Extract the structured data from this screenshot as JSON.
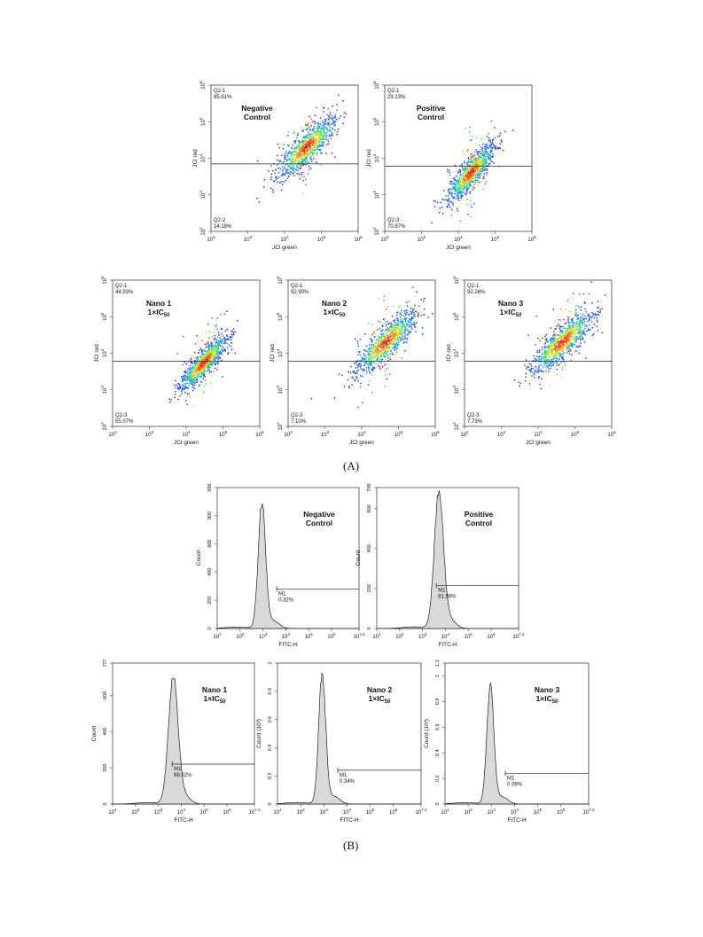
{
  "panel_labels": {
    "a": "(A)",
    "b": "(B)"
  },
  "chart_data": [
    {
      "type": "scatter",
      "panel": "A",
      "title_lines": [
        "Negative",
        "Control"
      ],
      "xlabel": "JCl green",
      "ylabel": "JCl red",
      "xscale": "log",
      "yscale": "log",
      "xlim": [
        100,
        1000000
      ],
      "ylim": [
        100,
        1000000
      ],
      "x_ticks": [
        {
          "exp": "2"
        },
        {
          "exp": "3"
        },
        {
          "exp": "4"
        },
        {
          "exp": "5"
        },
        {
          "exp": "6"
        }
      ],
      "y_ticks": [
        {
          "exp": "2"
        },
        {
          "exp": "3"
        },
        {
          "exp": "4"
        },
        {
          "exp": "5"
        },
        {
          "exp": "6"
        }
      ],
      "gate_y": 7000,
      "quadrants": [
        {
          "name": "Q2-1",
          "value": "85.81%",
          "position": "top-left"
        },
        {
          "name": "Q2-2",
          "value": "14.18%",
          "position": "bottom-left"
        }
      ],
      "population": {
        "center": [
          40000,
          20000
        ],
        "spread_x": 0.4,
        "spread_y": 0.5,
        "slope": 0.85,
        "count": 950
      }
    },
    {
      "type": "scatter",
      "panel": "A",
      "title_lines": [
        "Positive",
        "Control"
      ],
      "xlabel": "JCl green",
      "ylabel": "JCl red",
      "xscale": "log",
      "yscale": "log",
      "xlim": [
        100,
        1000000
      ],
      "ylim": [
        100,
        1000000
      ],
      "x_ticks": [
        {
          "exp": "2"
        },
        {
          "exp": "3"
        },
        {
          "exp": "4"
        },
        {
          "exp": "5"
        },
        {
          "exp": "6"
        }
      ],
      "y_ticks": [
        {
          "exp": "2"
        },
        {
          "exp": "3"
        },
        {
          "exp": "4"
        },
        {
          "exp": "5"
        },
        {
          "exp": "6"
        }
      ],
      "gate_y": 6000,
      "quadrants": [
        {
          "name": "Q2-1",
          "value": "29.13%",
          "position": "top-left"
        },
        {
          "name": "Q2-3",
          "value": "70.87%",
          "position": "bottom-left"
        }
      ],
      "population": {
        "center": [
          22000,
          4000
        ],
        "spread_x": 0.32,
        "spread_y": 0.45,
        "slope": 1.0,
        "count": 950
      }
    },
    {
      "type": "scatter",
      "panel": "A",
      "title_lines": [
        "Nano 1",
        "1×IC"
      ],
      "title_sub": "50",
      "xlabel": "JCl green",
      "ylabel": "JCl red",
      "xscale": "log",
      "yscale": "log",
      "xlim": [
        100,
        1000000
      ],
      "ylim": [
        100,
        1000000
      ],
      "x_ticks": [
        {
          "exp": "2"
        },
        {
          "exp": "3"
        },
        {
          "exp": "4"
        },
        {
          "exp": "5"
        },
        {
          "exp": "6"
        }
      ],
      "y_ticks": [
        {
          "exp": "2"
        },
        {
          "exp": "3"
        },
        {
          "exp": "4"
        },
        {
          "exp": "5"
        },
        {
          "exp": "6"
        }
      ],
      "gate_y": 6000,
      "quadrants": [
        {
          "name": "Q2-1",
          "value": "44.93%",
          "position": "top-left"
        },
        {
          "name": "Q2-3",
          "value": "55.07%",
          "position": "bottom-left"
        }
      ],
      "population": {
        "center": [
          30000,
          5500
        ],
        "spread_x": 0.33,
        "spread_y": 0.4,
        "slope": 1.0,
        "count": 950
      }
    },
    {
      "type": "scatter",
      "panel": "A",
      "title_lines": [
        "Nano 2",
        "1×IC"
      ],
      "title_sub": "50",
      "xlabel": "JCl green",
      "ylabel": "JCl red",
      "xscale": "log",
      "yscale": "log",
      "xlim": [
        100,
        1000000
      ],
      "ylim": [
        100,
        1000000
      ],
      "x_ticks": [
        {
          "exp": "2"
        },
        {
          "exp": "3"
        },
        {
          "exp": "4"
        },
        {
          "exp": "5"
        },
        {
          "exp": "6"
        }
      ],
      "y_ticks": [
        {
          "exp": "2"
        },
        {
          "exp": "3"
        },
        {
          "exp": "4"
        },
        {
          "exp": "5"
        },
        {
          "exp": "6"
        }
      ],
      "gate_y": 6000,
      "quadrants": [
        {
          "name": "Q2-1",
          "value": "92.90%",
          "position": "top-left"
        },
        {
          "name": "Q2-3",
          "value": "7.10%",
          "position": "bottom-left"
        }
      ],
      "population": {
        "center": [
          45000,
          20000
        ],
        "spread_x": 0.42,
        "spread_y": 0.5,
        "slope": 0.85,
        "count": 950
      }
    },
    {
      "type": "scatter",
      "panel": "A",
      "title_lines": [
        "Nano 3",
        "1×IC"
      ],
      "title_sub": "50",
      "xlabel": "JCl green",
      "ylabel": "JCl red",
      "xscale": "log",
      "yscale": "log",
      "xlim": [
        100,
        1000000
      ],
      "ylim": [
        100,
        1000000
      ],
      "x_ticks": [
        {
          "exp": "2"
        },
        {
          "exp": "3"
        },
        {
          "exp": "4"
        },
        {
          "exp": "5"
        },
        {
          "exp": "6"
        }
      ],
      "y_ticks": [
        {
          "exp": "2"
        },
        {
          "exp": "3"
        },
        {
          "exp": "4"
        },
        {
          "exp": "5"
        },
        {
          "exp": "6"
        }
      ],
      "gate_y": 6000,
      "quadrants": [
        {
          "name": "Q2-1",
          "value": "92.26%",
          "position": "top-left"
        },
        {
          "name": "Q2-3",
          "value": "7.73%",
          "position": "bottom-left"
        }
      ],
      "population": {
        "center": [
          45000,
          20000
        ],
        "spread_x": 0.42,
        "spread_y": 0.5,
        "slope": 0.85,
        "count": 950
      }
    },
    {
      "type": "area",
      "panel": "B",
      "title_lines": [
        "Negative",
        "Control"
      ],
      "xlabel": "FITC-H",
      "ylabel": "Count",
      "xscale": "log",
      "xlim": [
        10,
        15848932
      ],
      "ylim": [
        0,
        996
      ],
      "x_ticks": [
        {
          "exp": "1"
        },
        {
          "exp": "2"
        },
        {
          "exp": "3"
        },
        {
          "exp": "4"
        },
        {
          "exp": "5"
        },
        {
          "exp": "6"
        },
        {
          "exp": "7.2"
        }
      ],
      "y_ticks": [
        "0",
        "200",
        "400",
        "600",
        "800",
        "996"
      ],
      "gate": {
        "name": "M1",
        "value": "0.32%",
        "from": 4000,
        "level": 280
      },
      "peak": {
        "center": 900,
        "height": 890,
        "width": 0.16
      }
    },
    {
      "type": "area",
      "panel": "B",
      "title_lines": [
        "Positive",
        "Control"
      ],
      "xlabel": "FITC-H",
      "ylabel": "Count",
      "xscale": "log",
      "xlim": [
        10,
        15848932
      ],
      "ylim": [
        0,
        706
      ],
      "x_ticks": [
        {
          "exp": "1"
        },
        {
          "exp": "2"
        },
        {
          "exp": "3"
        },
        {
          "exp": "4"
        },
        {
          "exp": "5"
        },
        {
          "exp": "6"
        },
        {
          "exp": "7.2"
        }
      ],
      "y_ticks": [
        "0",
        "200",
        "400",
        "600",
        "706"
      ],
      "gate": {
        "name": "M1",
        "value": "81.56%",
        "from": 4000,
        "level": 215
      },
      "peak": {
        "center": 5200,
        "height": 685,
        "width": 0.2
      }
    },
    {
      "type": "area",
      "panel": "B",
      "title_lines": [
        "Nano 1",
        "1×IC"
      ],
      "title_sub": "50",
      "xlabel": "FITC-H",
      "ylabel": "Count",
      "xscale": "log",
      "xlim": [
        10,
        15848932
      ],
      "ylim": [
        0,
        777
      ],
      "x_ticks": [
        {
          "exp": "1"
        },
        {
          "exp": "2"
        },
        {
          "exp": "3"
        },
        {
          "exp": "4"
        },
        {
          "exp": "5"
        },
        {
          "exp": "6"
        },
        {
          "exp": "7.2"
        }
      ],
      "y_ticks": [
        "0",
        "200",
        "400",
        "600",
        "777"
      ],
      "gate": {
        "name": "M1",
        "value": "68.02%",
        "from": 4000,
        "level": 220
      },
      "peak": {
        "center": 4500,
        "height": 700,
        "width": 0.21
      }
    },
    {
      "type": "area",
      "panel": "B",
      "title_lines": [
        "Nano 2",
        "1×IC"
      ],
      "title_sub": "50",
      "xlabel": "FITC-H",
      "ylabel": "Count (10³)",
      "xscale": "log",
      "xlim": [
        10,
        15848932
      ],
      "ylim": [
        0,
        1
      ],
      "x_ticks": [
        {
          "exp": "1"
        },
        {
          "exp": "2"
        },
        {
          "exp": "3"
        },
        {
          "exp": "4"
        },
        {
          "exp": "5"
        },
        {
          "exp": "6"
        },
        {
          "exp": "7.2"
        }
      ],
      "y_ticks": [
        "0",
        "0.2",
        "0.4",
        "0.6",
        "0.8",
        "1"
      ],
      "gate": {
        "name": "M1",
        "value": "0.34%",
        "from": 4000,
        "level": 0.24
      },
      "peak": {
        "center": 850,
        "height": 0.92,
        "width": 0.15
      }
    },
    {
      "type": "area",
      "panel": "B",
      "title_lines": [
        "Nano 3",
        "1×IC"
      ],
      "title_sub": "50",
      "xlabel": "FITC-H",
      "ylabel": "Count (10³)",
      "xscale": "log",
      "xlim": [
        10,
        15848932
      ],
      "ylim": [
        0,
        1.1
      ],
      "x_ticks": [
        {
          "exp": "1"
        },
        {
          "exp": "2"
        },
        {
          "exp": "3"
        },
        {
          "exp": "4"
        },
        {
          "exp": "5"
        },
        {
          "exp": "6"
        },
        {
          "exp": "7.2"
        }
      ],
      "y_ticks": [
        "0",
        "0.2",
        "0.4",
        "0.6",
        "0.8",
        "1",
        "1.1"
      ],
      "gate": {
        "name": "M1",
        "value": "0.39%",
        "from": 4000,
        "level": 0.24
      },
      "peak": {
        "center": 900,
        "height": 0.94,
        "width": 0.15
      }
    }
  ]
}
